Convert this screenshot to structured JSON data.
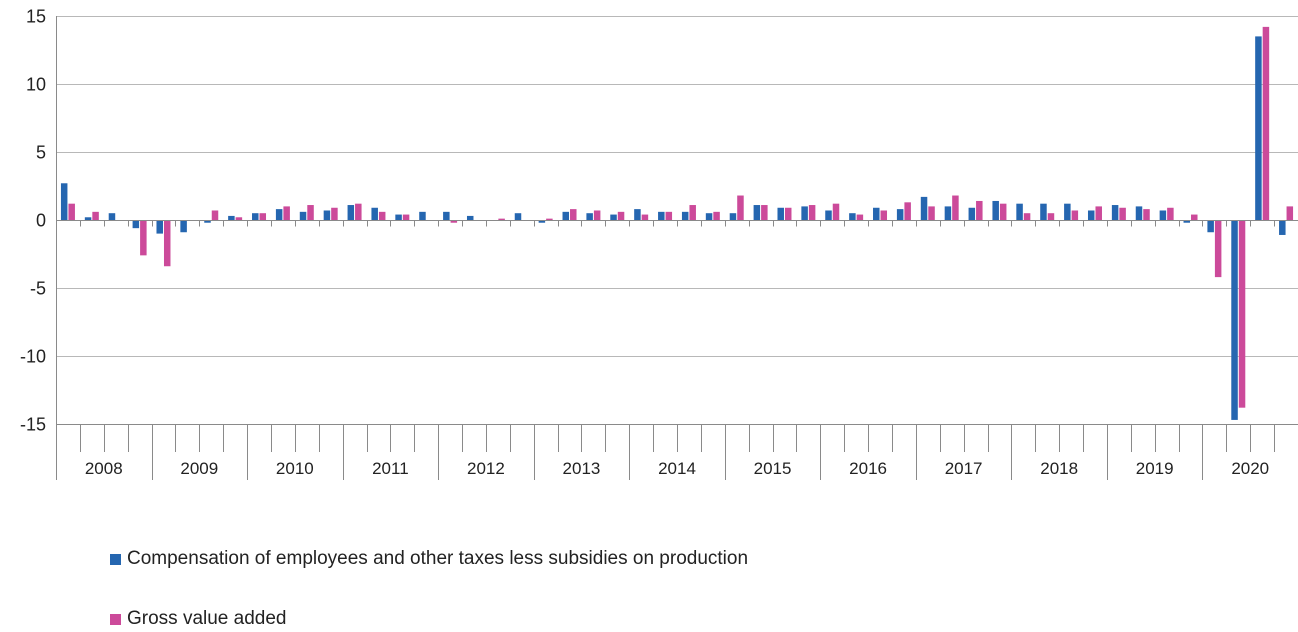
{
  "chart_data": {
    "type": "bar",
    "ylim": [
      -15,
      15
    ],
    "yticks": [
      15,
      10,
      5,
      0,
      -5,
      -10,
      -15
    ],
    "grid": true,
    "legend_position": "bottom-left",
    "years": [
      "2008",
      "2009",
      "2010",
      "2011",
      "2012",
      "2013",
      "2014",
      "2015",
      "2016",
      "2017",
      "2018",
      "2019",
      "2020"
    ],
    "quarters_per_year": 4,
    "series": [
      {
        "name": "Compensation of employees and other taxes less subsidies on production",
        "color": "#2566b0",
        "values": [
          2.7,
          0.2,
          0.5,
          -0.6,
          -1.0,
          -0.9,
          -0.2,
          0.3,
          0.5,
          0.8,
          0.6,
          0.7,
          1.1,
          0.9,
          0.4,
          0.6,
          0.6,
          0.3,
          0.0,
          0.5,
          -0.2,
          0.6,
          0.5,
          0.4,
          0.8,
          0.6,
          0.6,
          0.5,
          0.5,
          1.1,
          0.9,
          1.0,
          0.7,
          0.5,
          0.9,
          0.8,
          1.7,
          1.0,
          0.9,
          1.4,
          1.2,
          1.2,
          1.2,
          0.7,
          1.1,
          1.0,
          0.7,
          -0.2,
          -0.9,
          -14.7,
          13.5,
          -1.1
        ]
      },
      {
        "name": "Gross value added",
        "color": "#cc4a9a",
        "values": [
          1.2,
          0.6,
          0.0,
          -2.6,
          -3.4,
          0.0,
          0.7,
          0.2,
          0.5,
          1.0,
          1.1,
          0.9,
          1.2,
          0.6,
          0.4,
          0.0,
          -0.2,
          0.0,
          0.1,
          0.0,
          0.1,
          0.8,
          0.7,
          0.6,
          0.4,
          0.6,
          1.1,
          0.6,
          1.8,
          1.1,
          0.9,
          1.1,
          1.2,
          0.4,
          0.7,
          1.3,
          1.0,
          1.8,
          1.4,
          1.2,
          0.5,
          0.5,
          0.7,
          1.0,
          0.9,
          0.8,
          0.9,
          0.4,
          -4.2,
          -13.8,
          14.2,
          1.0
        ]
      }
    ]
  }
}
